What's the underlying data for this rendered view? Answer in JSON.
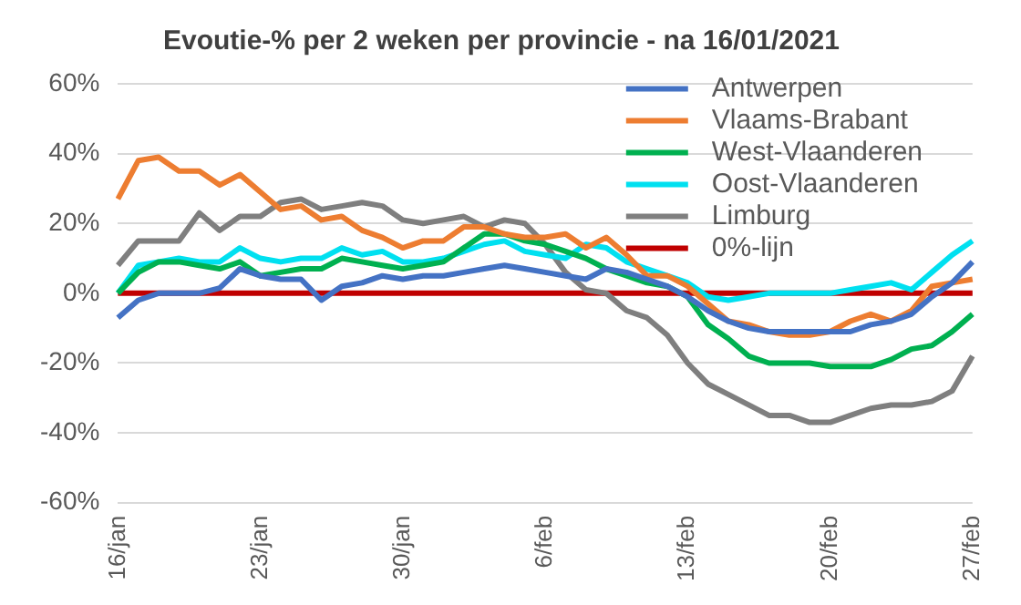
{
  "chart_data": {
    "type": "line",
    "title": "Evoutie-% per 2 weken per provincie - na 16/01/2021",
    "categories": [
      "16/jan",
      null,
      null,
      null,
      null,
      null,
      null,
      "23/jan",
      null,
      null,
      null,
      null,
      null,
      null,
      "30/jan",
      null,
      null,
      null,
      null,
      null,
      null,
      "6/feb",
      null,
      null,
      null,
      null,
      null,
      null,
      "13/feb",
      null,
      null,
      null,
      null,
      null,
      null,
      "20/feb",
      null,
      null,
      null,
      null,
      null,
      null,
      "27/feb"
    ],
    "series": [
      {
        "name": "Antwerpen",
        "color": "#4472c4",
        "values": [
          -7,
          -2,
          0,
          0,
          0,
          1.5,
          7,
          5,
          4,
          4,
          -2,
          2,
          3,
          5,
          4,
          5,
          5,
          6,
          7,
          8,
          7,
          6,
          5,
          4,
          7,
          6,
          4,
          2,
          -1,
          -5,
          -8,
          -10,
          -11,
          -11,
          -11,
          -11,
          -11,
          -9,
          -8,
          -6,
          -1,
          3,
          9
        ]
      },
      {
        "name": "Vlaams-Brabant",
        "color": "#ed7d31",
        "values": [
          27,
          38,
          39,
          35,
          35,
          31,
          34,
          29,
          24,
          25,
          21,
          22,
          18,
          16,
          13,
          15,
          15,
          19,
          19,
          17,
          16,
          16,
          17,
          13,
          16,
          11,
          5,
          5,
          2,
          -3,
          -8,
          -9,
          -11,
          -12,
          -12,
          -11,
          -8,
          -6,
          -8,
          -5,
          2,
          3,
          4
        ]
      },
      {
        "name": "West-Vlaanderen",
        "color": "#00b050",
        "values": [
          0,
          6,
          9,
          9,
          8,
          7,
          9,
          5,
          6,
          7,
          7,
          10,
          9,
          8,
          7,
          8,
          9,
          13,
          17,
          17,
          15,
          14,
          12,
          10,
          7,
          5,
          3,
          2,
          -1,
          -9,
          -13,
          -18,
          -20,
          -20,
          -20,
          -21,
          -21,
          -21,
          -19,
          -16,
          -15,
          -11,
          -6
        ]
      },
      {
        "name": "Oost-Vlaanderen",
        "color": "#00e0f0",
        "values": [
          0,
          8,
          9,
          10,
          9,
          9,
          13,
          10,
          9,
          10,
          10,
          13,
          11,
          12,
          9,
          9,
          10,
          12,
          14,
          15,
          12,
          11,
          10,
          14,
          13,
          9,
          7,
          5,
          3,
          -1,
          -2,
          -1,
          0,
          0,
          0,
          0,
          1,
          2,
          3,
          1,
          6,
          11,
          15
        ]
      },
      {
        "name": "Limburg",
        "color": "#7f7f7f",
        "values": [
          8,
          15,
          15,
          15,
          23,
          18,
          22,
          22,
          26,
          27,
          24,
          25,
          26,
          25,
          21,
          20,
          21,
          22,
          19,
          21,
          20,
          14,
          6,
          1,
          0,
          -5,
          -7,
          -12,
          -20,
          -26,
          -29,
          -32,
          -35,
          -35,
          -37,
          -37,
          -35,
          -33,
          -32,
          -32,
          -31,
          -28,
          -18
        ]
      },
      {
        "name": "0%-lijn",
        "color": "#c00000",
        "values": [
          0,
          0,
          0,
          0,
          0,
          0,
          0,
          0,
          0,
          0,
          0,
          0,
          0,
          0,
          0,
          0,
          0,
          0,
          0,
          0,
          0,
          0,
          0,
          0,
          0,
          0,
          0,
          0,
          0,
          0,
          0,
          0,
          0,
          0,
          0,
          0,
          0,
          0,
          0,
          0,
          0,
          0,
          0
        ]
      }
    ],
    "ylim": [
      -60,
      60
    ],
    "yticks": [
      {
        "value": -60,
        "label": "-60%"
      },
      {
        "value": -40,
        "label": "-40%"
      },
      {
        "value": -20,
        "label": "-20%"
      },
      {
        "value": 0,
        "label": "0%"
      },
      {
        "value": 20,
        "label": "20%"
      },
      {
        "value": 40,
        "label": "40%"
      },
      {
        "value": 60,
        "label": "60%"
      }
    ],
    "grid": "y",
    "legend": "top right",
    "marker": "none",
    "line_style": "solid"
  }
}
